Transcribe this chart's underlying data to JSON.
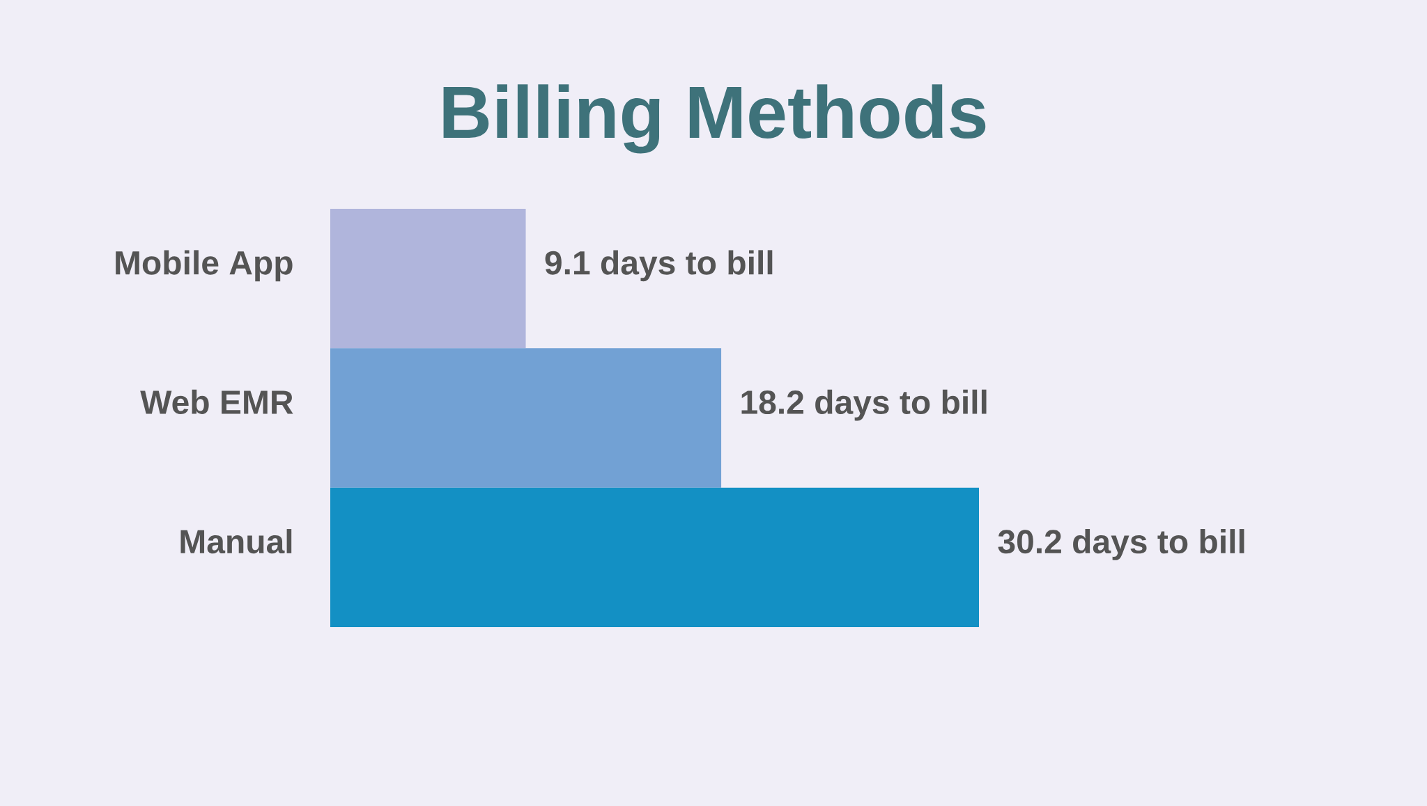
{
  "chart_data": {
    "type": "bar",
    "title": "Billing Methods",
    "orientation": "horizontal",
    "tick_labels": "y",
    "categories": [
      "Mobile App",
      "Web EMR",
      "Manual"
    ],
    "values": [
      9.1,
      18.2,
      30.2
    ],
    "colors": [
      "#b0b5dc",
      "#72a1d4",
      "#1390c4"
    ],
    "value_labels": [
      "9.1 days to bill",
      "18.2 days to bill",
      "30.2 days to bill"
    ]
  }
}
